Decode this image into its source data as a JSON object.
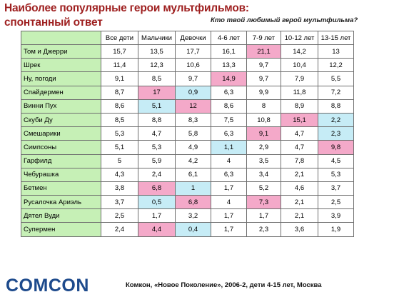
{
  "title": {
    "line1": "Наиболее популярные герои мультфильмов:",
    "line2": "спонтанный ответ"
  },
  "question": "Кто твой любимый герой мультфильма?",
  "table": {
    "headers": [
      "Все дети",
      "Мальчики",
      "Девочки",
      "4-6 лет",
      "7-9 лет",
      "10-12 лет",
      "13-15 лет"
    ],
    "rows": [
      {
        "name": "Том и Джерри",
        "values": [
          "15,7",
          "13,5",
          "17,7",
          "16,1",
          "21,1",
          "14,2",
          "13"
        ],
        "hl": [
          null,
          null,
          null,
          null,
          "pink",
          null,
          null
        ]
      },
      {
        "name": "Шрек",
        "values": [
          "11,4",
          "12,3",
          "10,6",
          "13,3",
          "9,7",
          "10,4",
          "12,2"
        ],
        "hl": [
          null,
          null,
          null,
          null,
          null,
          null,
          null
        ]
      },
      {
        "name": "Ну, погоди",
        "values": [
          "9,1",
          "8,5",
          "9,7",
          "14,9",
          "9,7",
          "7,9",
          "5,5"
        ],
        "hl": [
          null,
          null,
          null,
          "pink",
          null,
          null,
          null
        ]
      },
      {
        "name": "Спайдермен",
        "values": [
          "8,7",
          "17",
          "0,9",
          "6,3",
          "9,9",
          "11,8",
          "7,2"
        ],
        "hl": [
          null,
          "pink",
          "blue",
          null,
          null,
          null,
          null
        ]
      },
      {
        "name": "Винни Пух",
        "values": [
          "8,6",
          "5,1",
          "12",
          "8,6",
          "8",
          "8,9",
          "8,8"
        ],
        "hl": [
          null,
          "blue",
          "pink",
          null,
          null,
          null,
          null
        ]
      },
      {
        "name": "Скуби Ду",
        "values": [
          "8,5",
          "8,8",
          "8,3",
          "7,5",
          "10,8",
          "15,1",
          "2,2"
        ],
        "hl": [
          null,
          null,
          null,
          null,
          null,
          "pink",
          "blue"
        ]
      },
      {
        "name": "Смешарики",
        "values": [
          "5,3",
          "4,7",
          "5,8",
          "6,3",
          "9,1",
          "4,7",
          "2,3"
        ],
        "hl": [
          null,
          null,
          null,
          null,
          "pink",
          null,
          "blue"
        ]
      },
      {
        "name": "Симпсоны",
        "values": [
          "5,1",
          "5,3",
          "4,9",
          "1,1",
          "2,9",
          "4,7",
          "9,8"
        ],
        "hl": [
          null,
          null,
          null,
          "blue",
          null,
          null,
          "pink"
        ]
      },
      {
        "name": "Гарфилд",
        "values": [
          "5",
          "5,9",
          "4,2",
          "4",
          "3,5",
          "7,8",
          "4,5"
        ],
        "hl": [
          null,
          null,
          null,
          null,
          null,
          null,
          null
        ]
      },
      {
        "name": "Чебурашка",
        "values": [
          "4,3",
          "2,4",
          "6,1",
          "6,3",
          "3,4",
          "2,1",
          "5,3"
        ],
        "hl": [
          null,
          null,
          null,
          null,
          null,
          null,
          null
        ]
      },
      {
        "name": "Бетмен",
        "values": [
          "3,8",
          "6,8",
          "1",
          "1,7",
          "5,2",
          "4,6",
          "3,7"
        ],
        "hl": [
          null,
          "pink",
          "blue",
          null,
          null,
          null,
          null
        ]
      },
      {
        "name": "Русалочка Ариэль",
        "values": [
          "3,7",
          "0,5",
          "6,8",
          "4",
          "7,3",
          "2,1",
          "2,5"
        ],
        "hl": [
          null,
          "blue",
          "pink",
          null,
          "pink",
          null,
          null
        ]
      },
      {
        "name": "Дятел Вуди",
        "values": [
          "2,5",
          "1,7",
          "3,2",
          "1,7",
          "1,7",
          "2,1",
          "3,9"
        ],
        "hl": [
          null,
          null,
          null,
          null,
          null,
          null,
          null
        ]
      },
      {
        "name": "Супермен",
        "values": [
          "2,4",
          "4,4",
          "0,4",
          "1,7",
          "2,3",
          "3,6",
          "1,9"
        ],
        "hl": [
          null,
          "pink",
          "blue",
          null,
          null,
          null,
          null
        ]
      }
    ]
  },
  "logo": "COMCON",
  "source": "Комкон, «Новое Поколение», 2006-2, дети 4-15 лет, Москва",
  "colors": {
    "title": "#9e1f1f",
    "name_column": "#c6f0b6",
    "highlight_high": "#f4a9c9",
    "highlight_low": "#c6ecf6",
    "logo": "#1d4a8c"
  }
}
